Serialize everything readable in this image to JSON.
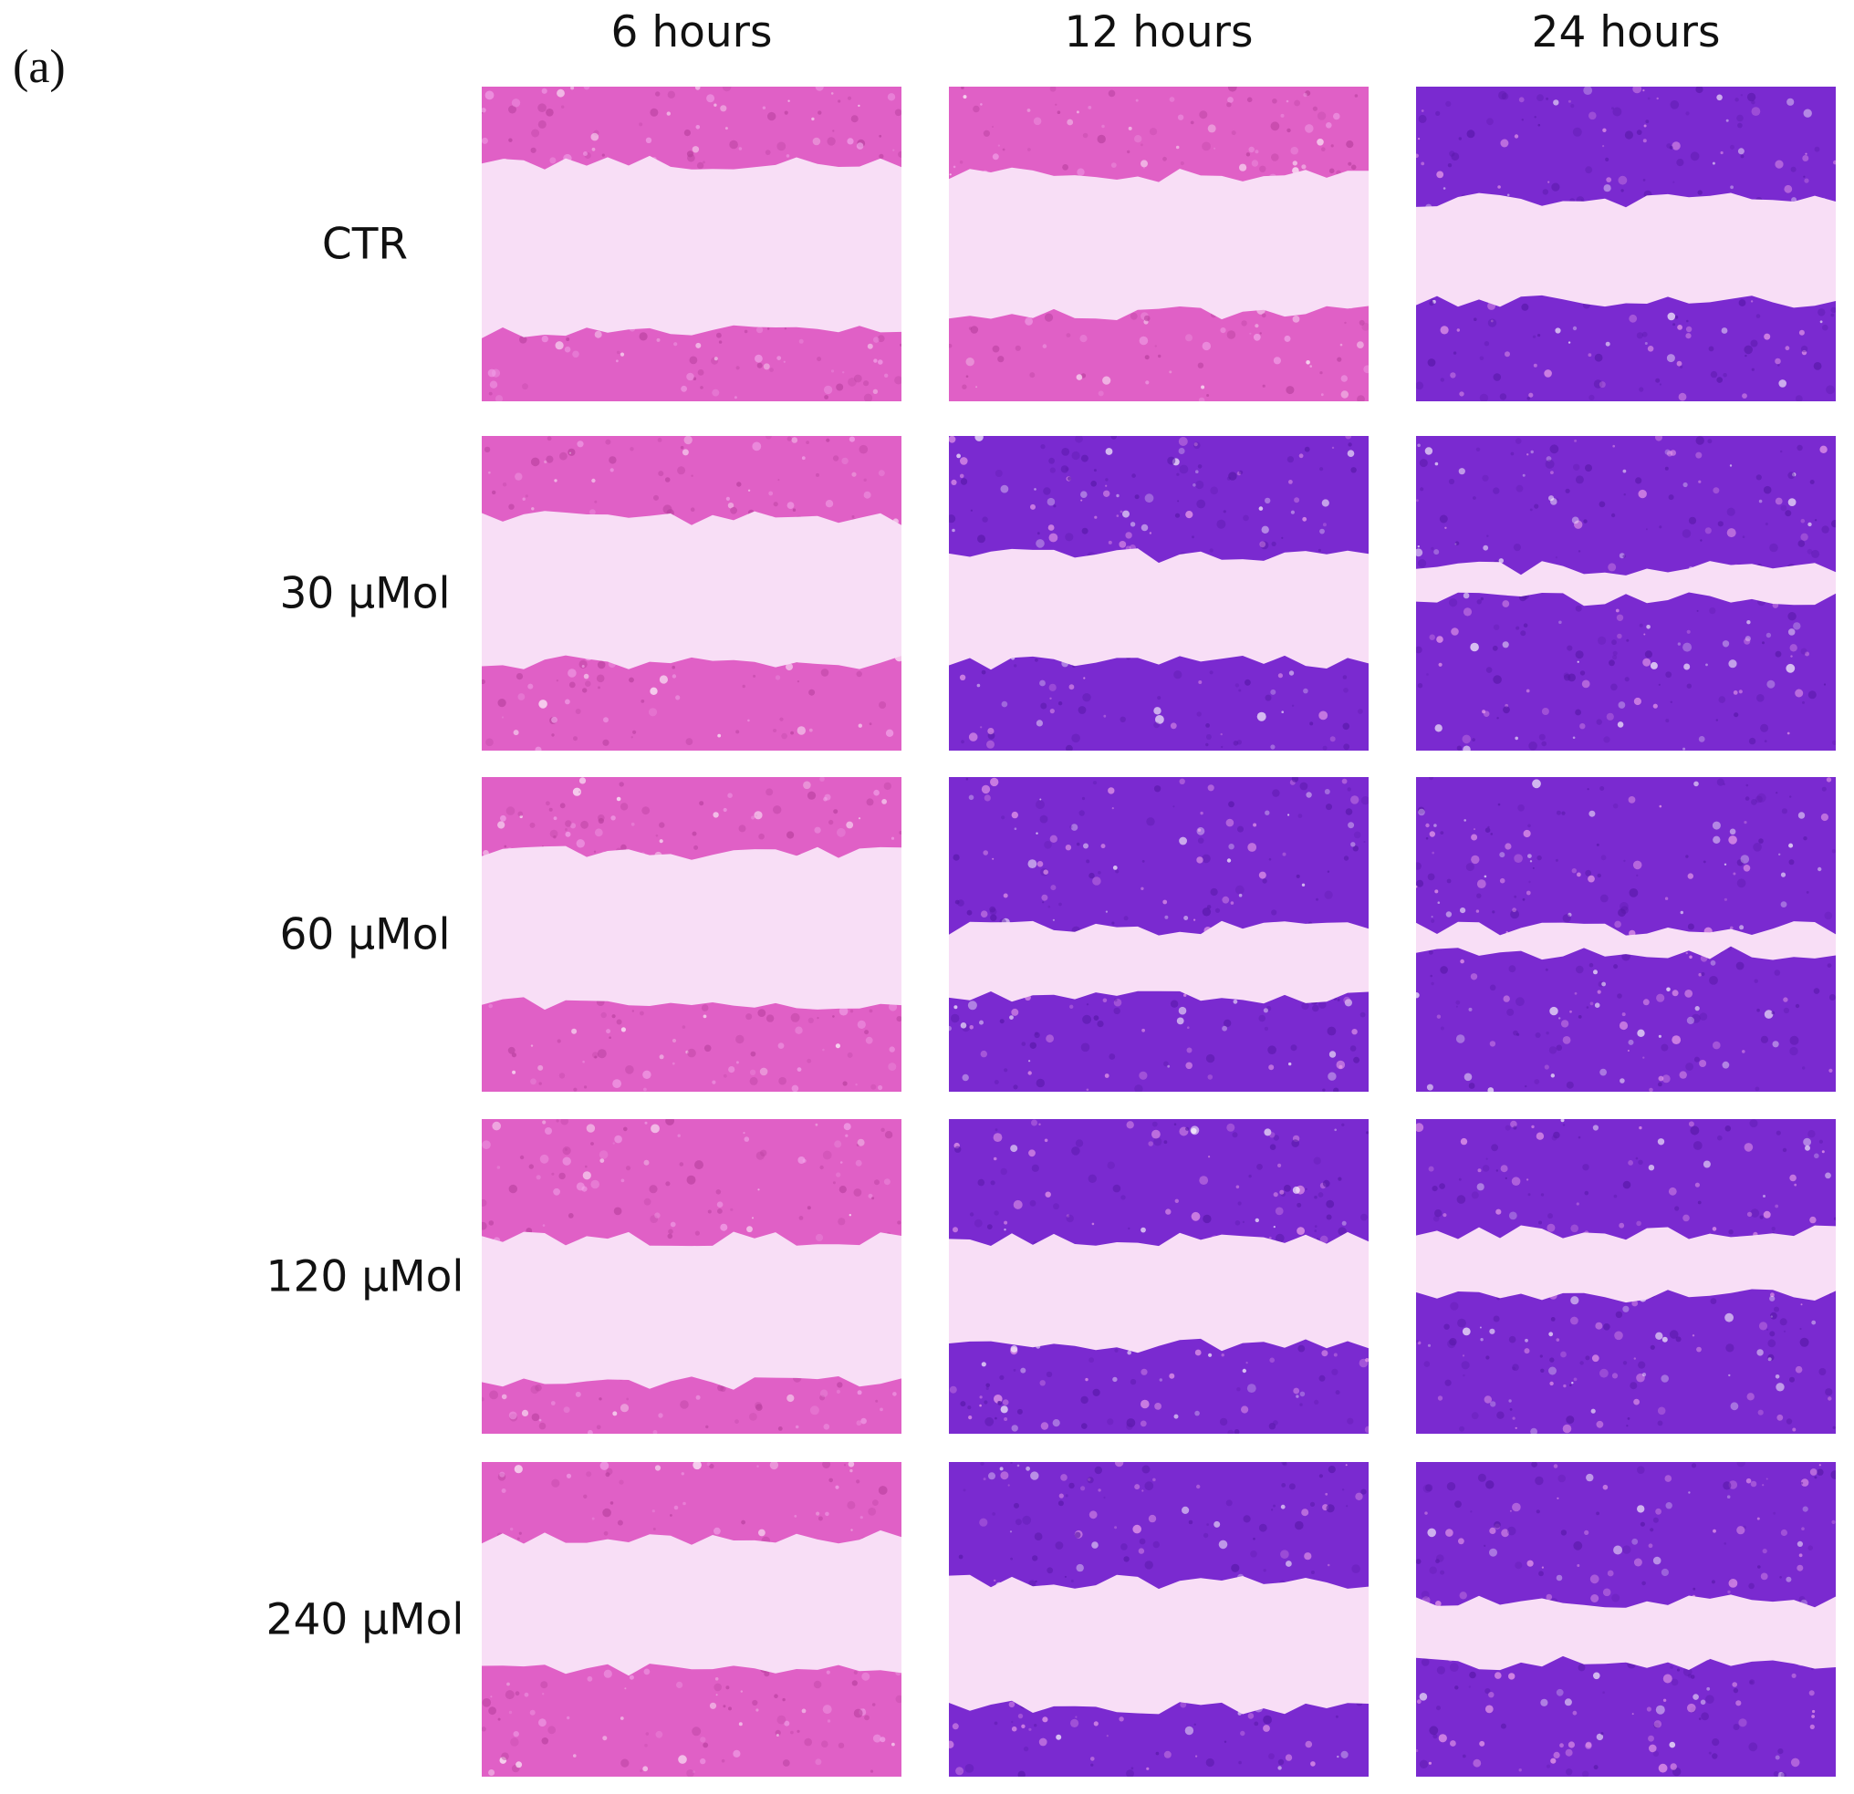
{
  "panel_label": "(a)",
  "columns": [
    {
      "label": "6 hours"
    },
    {
      "label": "12 hours"
    },
    {
      "label": "24 hours"
    }
  ],
  "rows": [
    {
      "label": "CTR"
    },
    {
      "label": "30 μMol"
    },
    {
      "label": "60 μMol"
    },
    {
      "label": "120 μMol"
    },
    {
      "label": "240 μMol"
    }
  ],
  "colors": {
    "background": "#ffffff",
    "wound_gap": "#f8def6",
    "cells_pink": "#e060c6",
    "cells_pink_dark": "#b8409e",
    "cells_purple": "#7a2ad0",
    "cells_purple_dark": "#5818a8"
  },
  "micrographs": [
    {
      "row": 0,
      "col": 0,
      "stain": "pink",
      "gap_top": 0.24,
      "gap_bottom": 0.78
    },
    {
      "row": 0,
      "col": 1,
      "stain": "pink",
      "gap_top": 0.28,
      "gap_bottom": 0.72
    },
    {
      "row": 0,
      "col": 2,
      "stain": "purple",
      "gap_top": 0.36,
      "gap_bottom": 0.68
    },
    {
      "row": 1,
      "col": 0,
      "stain": "pink",
      "gap_top": 0.26,
      "gap_bottom": 0.72
    },
    {
      "row": 1,
      "col": 1,
      "stain": "purple",
      "gap_top": 0.38,
      "gap_bottom": 0.72
    },
    {
      "row": 1,
      "col": 2,
      "stain": "purple",
      "gap_top": 0.42,
      "gap_bottom": 0.52
    },
    {
      "row": 2,
      "col": 0,
      "stain": "pink",
      "gap_top": 0.24,
      "gap_bottom": 0.72
    },
    {
      "row": 2,
      "col": 1,
      "stain": "purple",
      "gap_top": 0.48,
      "gap_bottom": 0.7
    },
    {
      "row": 2,
      "col": 2,
      "stain": "purple",
      "gap_top": 0.48,
      "gap_bottom": 0.56
    },
    {
      "row": 3,
      "col": 0,
      "stain": "pink",
      "gap_top": 0.38,
      "gap_bottom": 0.84
    },
    {
      "row": 3,
      "col": 1,
      "stain": "purple",
      "gap_top": 0.38,
      "gap_bottom": 0.72
    },
    {
      "row": 3,
      "col": 2,
      "stain": "purple",
      "gap_top": 0.36,
      "gap_bottom": 0.56
    },
    {
      "row": 4,
      "col": 0,
      "stain": "pink",
      "gap_top": 0.24,
      "gap_bottom": 0.66
    },
    {
      "row": 4,
      "col": 1,
      "stain": "purple",
      "gap_top": 0.38,
      "gap_bottom": 0.78
    },
    {
      "row": 4,
      "col": 2,
      "stain": "purple",
      "gap_top": 0.44,
      "gap_bottom": 0.64
    }
  ]
}
